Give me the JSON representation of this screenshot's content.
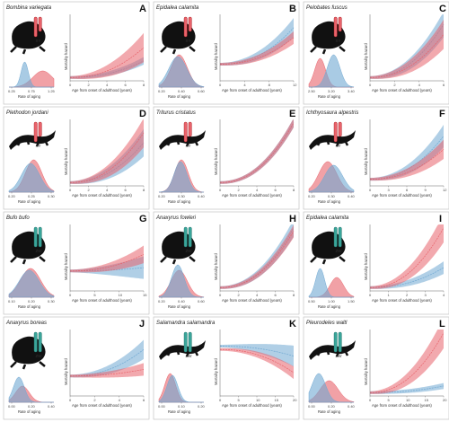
{
  "colors": {
    "female": "#e8636b",
    "male": "#6fa8d2",
    "zw": "#3aa59a",
    "axis": "#666666"
  },
  "chart_data": [
    {
      "panel": "A",
      "species": "Bombina variegata",
      "sex_system": "XY",
      "icon": "frog-silhouette-icon",
      "density": {
        "xlabel": "Rate of aging",
        "ticks": [
          "0.25",
          "0.75",
          "1.25"
        ],
        "female": [
          0.75,
          0.22
        ],
        "male": [
          0.35,
          0.08
        ],
        "heights": [
          0.45,
          0.7
        ]
      },
      "mortality": {
        "xlabel": "Age from onset of adulthood (years)",
        "ylabel": "Mortality hazard",
        "ticks": [
          "0",
          "2",
          "4",
          "6",
          "8"
        ],
        "female": [
          0.05,
          0.5,
          0.8
        ],
        "male": [
          0.05,
          0.3,
          0.15
        ]
      }
    },
    {
      "panel": "B",
      "species": "Epidalea calamita",
      "sex_system": "XY",
      "icon": "toad-silhouette-icon",
      "density": {
        "xlabel": "Rate of aging",
        "ticks": [
          "0.20",
          "0.40",
          "0.60"
        ],
        "female": [
          0.45,
          0.18
        ],
        "male": [
          0.42,
          0.2
        ],
        "heights": [
          0.9,
          0.85
        ]
      },
      "mortality": {
        "xlabel": "Age from onset of adulthood (years)",
        "ylabel": "Mortality hazard",
        "ticks": [
          "0",
          "4",
          "8",
          "12"
        ],
        "female": [
          0.25,
          0.65,
          0.3
        ],
        "male": [
          0.25,
          0.8,
          0.5
        ]
      }
    },
    {
      "panel": "C",
      "species": "Pelobates fuscus",
      "sex_system": "XY",
      "icon": "frog-silhouette-icon",
      "density": {
        "xlabel": "Rate of aging",
        "ticks": [
          "2.50",
          "3.20",
          "3.40"
        ],
        "female": [
          0.25,
          0.12
        ],
        "male": [
          0.55,
          0.14
        ],
        "heights": [
          0.8,
          0.9
        ]
      },
      "mortality": {
        "xlabel": "Age from onset of adulthood (years)",
        "ylabel": "Mortality hazard",
        "ticks": [
          "0",
          "2",
          "4",
          "6"
        ],
        "female": [
          0.05,
          0.7,
          0.8
        ],
        "male": [
          0.05,
          0.85,
          0.7
        ]
      }
    },
    {
      "panel": "D",
      "species": "Plethodon jordani",
      "sex_system": "XY",
      "icon": "salamander-silhouette-icon",
      "density": {
        "xlabel": "Rate of aging",
        "ticks": [
          "0.20",
          "0.25",
          "0.30"
        ],
        "female": [
          0.55,
          0.18
        ],
        "male": [
          0.48,
          0.2
        ],
        "heights": [
          0.9,
          0.8
        ]
      },
      "mortality": {
        "xlabel": "Age from onset of adulthood (years)",
        "ylabel": "Mortality hazard",
        "ticks": [
          "0",
          "2",
          "4",
          "6",
          "8"
        ],
        "female": [
          0.05,
          0.8,
          0.8
        ],
        "male": [
          0.05,
          0.65,
          0.75
        ]
      }
    },
    {
      "panel": "E",
      "species": "Triturus cristatus",
      "sex_system": "XY",
      "icon": "newt-silhouette-icon",
      "density": {
        "xlabel": "Rate of aging",
        "ticks": [
          "0.20",
          "0.30",
          "0.40"
        ],
        "female": [
          0.5,
          0.15
        ],
        "male": [
          0.48,
          0.14
        ],
        "heights": [
          0.9,
          0.85
        ]
      },
      "mortality": {
        "xlabel": "Age from onset of adulthood (years)",
        "ylabel": "Mortality hazard",
        "ticks": [
          "0",
          "2",
          "4",
          "6",
          "8"
        ],
        "female": [
          0.05,
          0.95,
          0.2
        ],
        "male": [
          0.05,
          0.95,
          0.2
        ]
      }
    },
    {
      "panel": "F",
      "species": "Ichthyosaura alpestris",
      "sex_system": "XY",
      "icon": "newt-silhouette-icon",
      "density": {
        "xlabel": "Rate of aging",
        "ticks": [
          "0.20",
          "0.30",
          "0.40"
        ],
        "female": [
          0.42,
          0.2
        ],
        "male": [
          0.55,
          0.2
        ],
        "heights": [
          0.85,
          0.75
        ]
      },
      "mortality": {
        "xlabel": "Age from onset of adulthood (years)",
        "ylabel": "Mortality hazard",
        "ticks": [
          "0",
          "3",
          "6",
          "9",
          "12"
        ],
        "female": [
          0.1,
          0.55,
          0.5
        ],
        "male": [
          0.1,
          0.75,
          0.6
        ]
      }
    },
    {
      "panel": "G",
      "species": "Bufo bufo",
      "sex_system": "ZW",
      "icon": "toad-silhouette-icon",
      "density": {
        "xlabel": "Rate of aging",
        "ticks": [
          "0.10",
          "0.20",
          "0.30"
        ],
        "female": [
          0.48,
          0.22
        ],
        "male": [
          0.45,
          0.22
        ],
        "heights": [
          0.8,
          0.75
        ]
      },
      "mortality": {
        "xlabel": "Age from onset of adulthood (years)",
        "ylabel": "Mortality hazard",
        "ticks": [
          "0",
          "5",
          "10",
          "15"
        ],
        "female": [
          0.3,
          0.55,
          0.45
        ],
        "male": [
          0.3,
          0.35,
          0.6
        ]
      }
    },
    {
      "panel": "H",
      "species": "Anaxyrus fowleri",
      "sex_system": "ZW",
      "icon": "frog-silhouette-icon",
      "density": {
        "xlabel": "Rate of aging",
        "ticks": [
          "0.20",
          "0.40",
          "0.60"
        ],
        "female": [
          0.45,
          0.18
        ],
        "male": [
          0.42,
          0.14
        ],
        "heights": [
          0.75,
          0.9
        ]
      },
      "mortality": {
        "xlabel": "Age from onset of adulthood (years)",
        "ylabel": "Mortality hazard",
        "ticks": [
          "0",
          "2",
          "4",
          "6",
          "8"
        ],
        "female": [
          0.05,
          0.9,
          0.3
        ],
        "male": [
          0.05,
          0.95,
          0.45
        ]
      }
    },
    {
      "panel": "I",
      "species": "Epidalea calamita",
      "sex_system": "ZW",
      "icon": "frog-silhouette-icon",
      "density": {
        "xlabel": "Rate of aging",
        "ticks": [
          "0.50",
          "1.00",
          "1.50"
        ],
        "female": [
          0.62,
          0.15
        ],
        "male": [
          0.25,
          0.1
        ],
        "heights": [
          0.55,
          0.8
        ]
      },
      "mortality": {
        "xlabel": "Age from onset of adulthood (years)",
        "ylabel": "Mortality hazard",
        "ticks": [
          "0",
          "1",
          "2",
          "3",
          "4"
        ],
        "female": [
          0.05,
          0.95,
          0.8
        ],
        "male": [
          0.05,
          0.35,
          0.3
        ]
      }
    },
    {
      "panel": "J",
      "species": "Anaxyrus boreas",
      "sex_system": "ZW",
      "icon": "toad-silhouette-icon",
      "density": {
        "xlabel": "Rate of aging",
        "ticks": [
          "0.00",
          "0.20",
          "0.40"
        ],
        "female": [
          0.3,
          0.15
        ],
        "male": [
          0.22,
          0.12
        ],
        "heights": [
          0.45,
          0.7
        ]
      },
      "mortality": {
        "xlabel": "Age from onset of adulthood (years)",
        "ylabel": "Mortality hazard",
        "ticks": [
          "0",
          "2",
          "4",
          "6"
        ],
        "female": [
          0.3,
          0.4,
          0.3
        ],
        "male": [
          0.3,
          0.7,
          0.5
        ]
      }
    },
    {
      "panel": "K",
      "species": "Salamandra salamandra",
      "sex_system": "ZW",
      "icon": "salamander-silhouette-icon",
      "density": {
        "xlabel": "Rate of aging",
        "ticks": [
          "0.00",
          "0.10",
          "0.20"
        ],
        "female": [
          0.25,
          0.12
        ],
        "male": [
          0.3,
          0.12
        ],
        "heights": [
          0.8,
          0.75
        ]
      },
      "mortality": {
        "xlabel": "Age from onset of adulthood (years)",
        "ylabel": "Mortality hazard",
        "ticks": [
          "0",
          "5",
          "10",
          "15",
          "20"
        ],
        "female": [
          0.7,
          0.35,
          0.3
        ],
        "male": [
          0.75,
          0.6,
          0.55
        ]
      }
    },
    {
      "panel": "L",
      "species": "Pleurodeles waltl",
      "sex_system": "ZW",
      "icon": "newt-silhouette-icon",
      "density": {
        "xlabel": "Rate of aging",
        "ticks": [
          "0.00",
          "0.20",
          "0.40"
        ],
        "female": [
          0.45,
          0.2
        ],
        "male": [
          0.22,
          0.15
        ],
        "heights": [
          0.6,
          0.8
        ]
      },
      "mortality": {
        "xlabel": "Age from onset of adulthood (years)",
        "ylabel": "Mortality hazard",
        "ticks": [
          "0",
          "5",
          "10",
          "15",
          "20"
        ],
        "female": [
          0.05,
          0.95,
          0.85
        ],
        "male": [
          0.05,
          0.15,
          0.1
        ]
      }
    }
  ]
}
